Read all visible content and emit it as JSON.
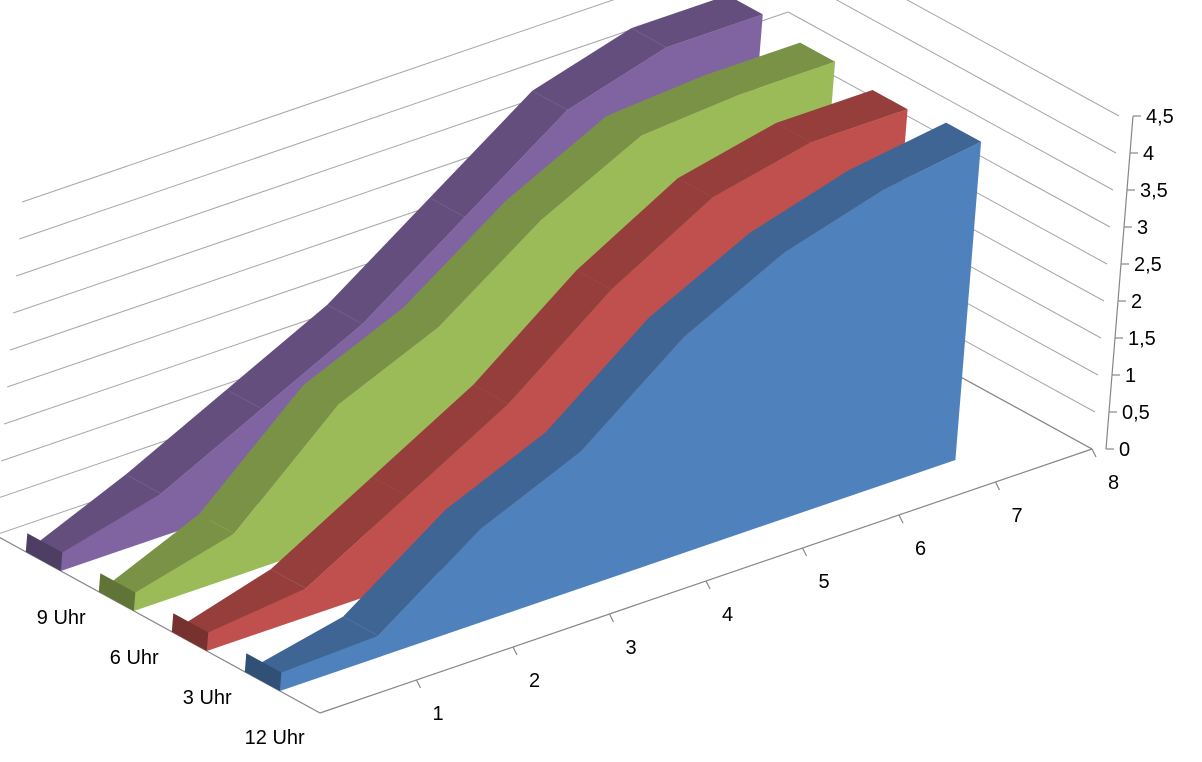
{
  "chart_data": {
    "type": "area",
    "subtype": "3d-area",
    "title": "",
    "categories": [
      "1",
      "2",
      "3",
      "4",
      "5",
      "6",
      "7",
      "8"
    ],
    "series_axis_labels": [
      "12 Uhr",
      "3 Uhr",
      "6 Uhr",
      "9 Uhr"
    ],
    "value_ticks": [
      "0",
      "0,5",
      "1",
      "1,5",
      "2",
      "2,5",
      "3",
      "3,5",
      "4",
      "4,5"
    ],
    "ylim": [
      0,
      4.5
    ],
    "grid": true,
    "legend": "none",
    "series": [
      {
        "name": "12 Uhr",
        "color": "#4f81bd",
        "values": [
          0,
          0.3,
          1.3,
          1.9,
          3.0,
          3.7,
          4.1,
          4.3
        ]
      },
      {
        "name": "3 Uhr",
        "color": "#c0504d",
        "values": [
          0,
          0.4,
          1.2,
          2.0,
          3.1,
          3.9,
          4.2,
          4.2
        ]
      },
      {
        "name": "6 Uhr",
        "color": "#9bbb59",
        "values": [
          0,
          0.6,
          1.9,
          2.5,
          3.5,
          4.2,
          4.3,
          4.3
        ]
      },
      {
        "name": "9 Uhr",
        "color": "#8064a2",
        "values": [
          0,
          0.6,
          1.3,
          2.0,
          3.0,
          4.0,
          4.4,
          4.4
        ]
      }
    ]
  }
}
